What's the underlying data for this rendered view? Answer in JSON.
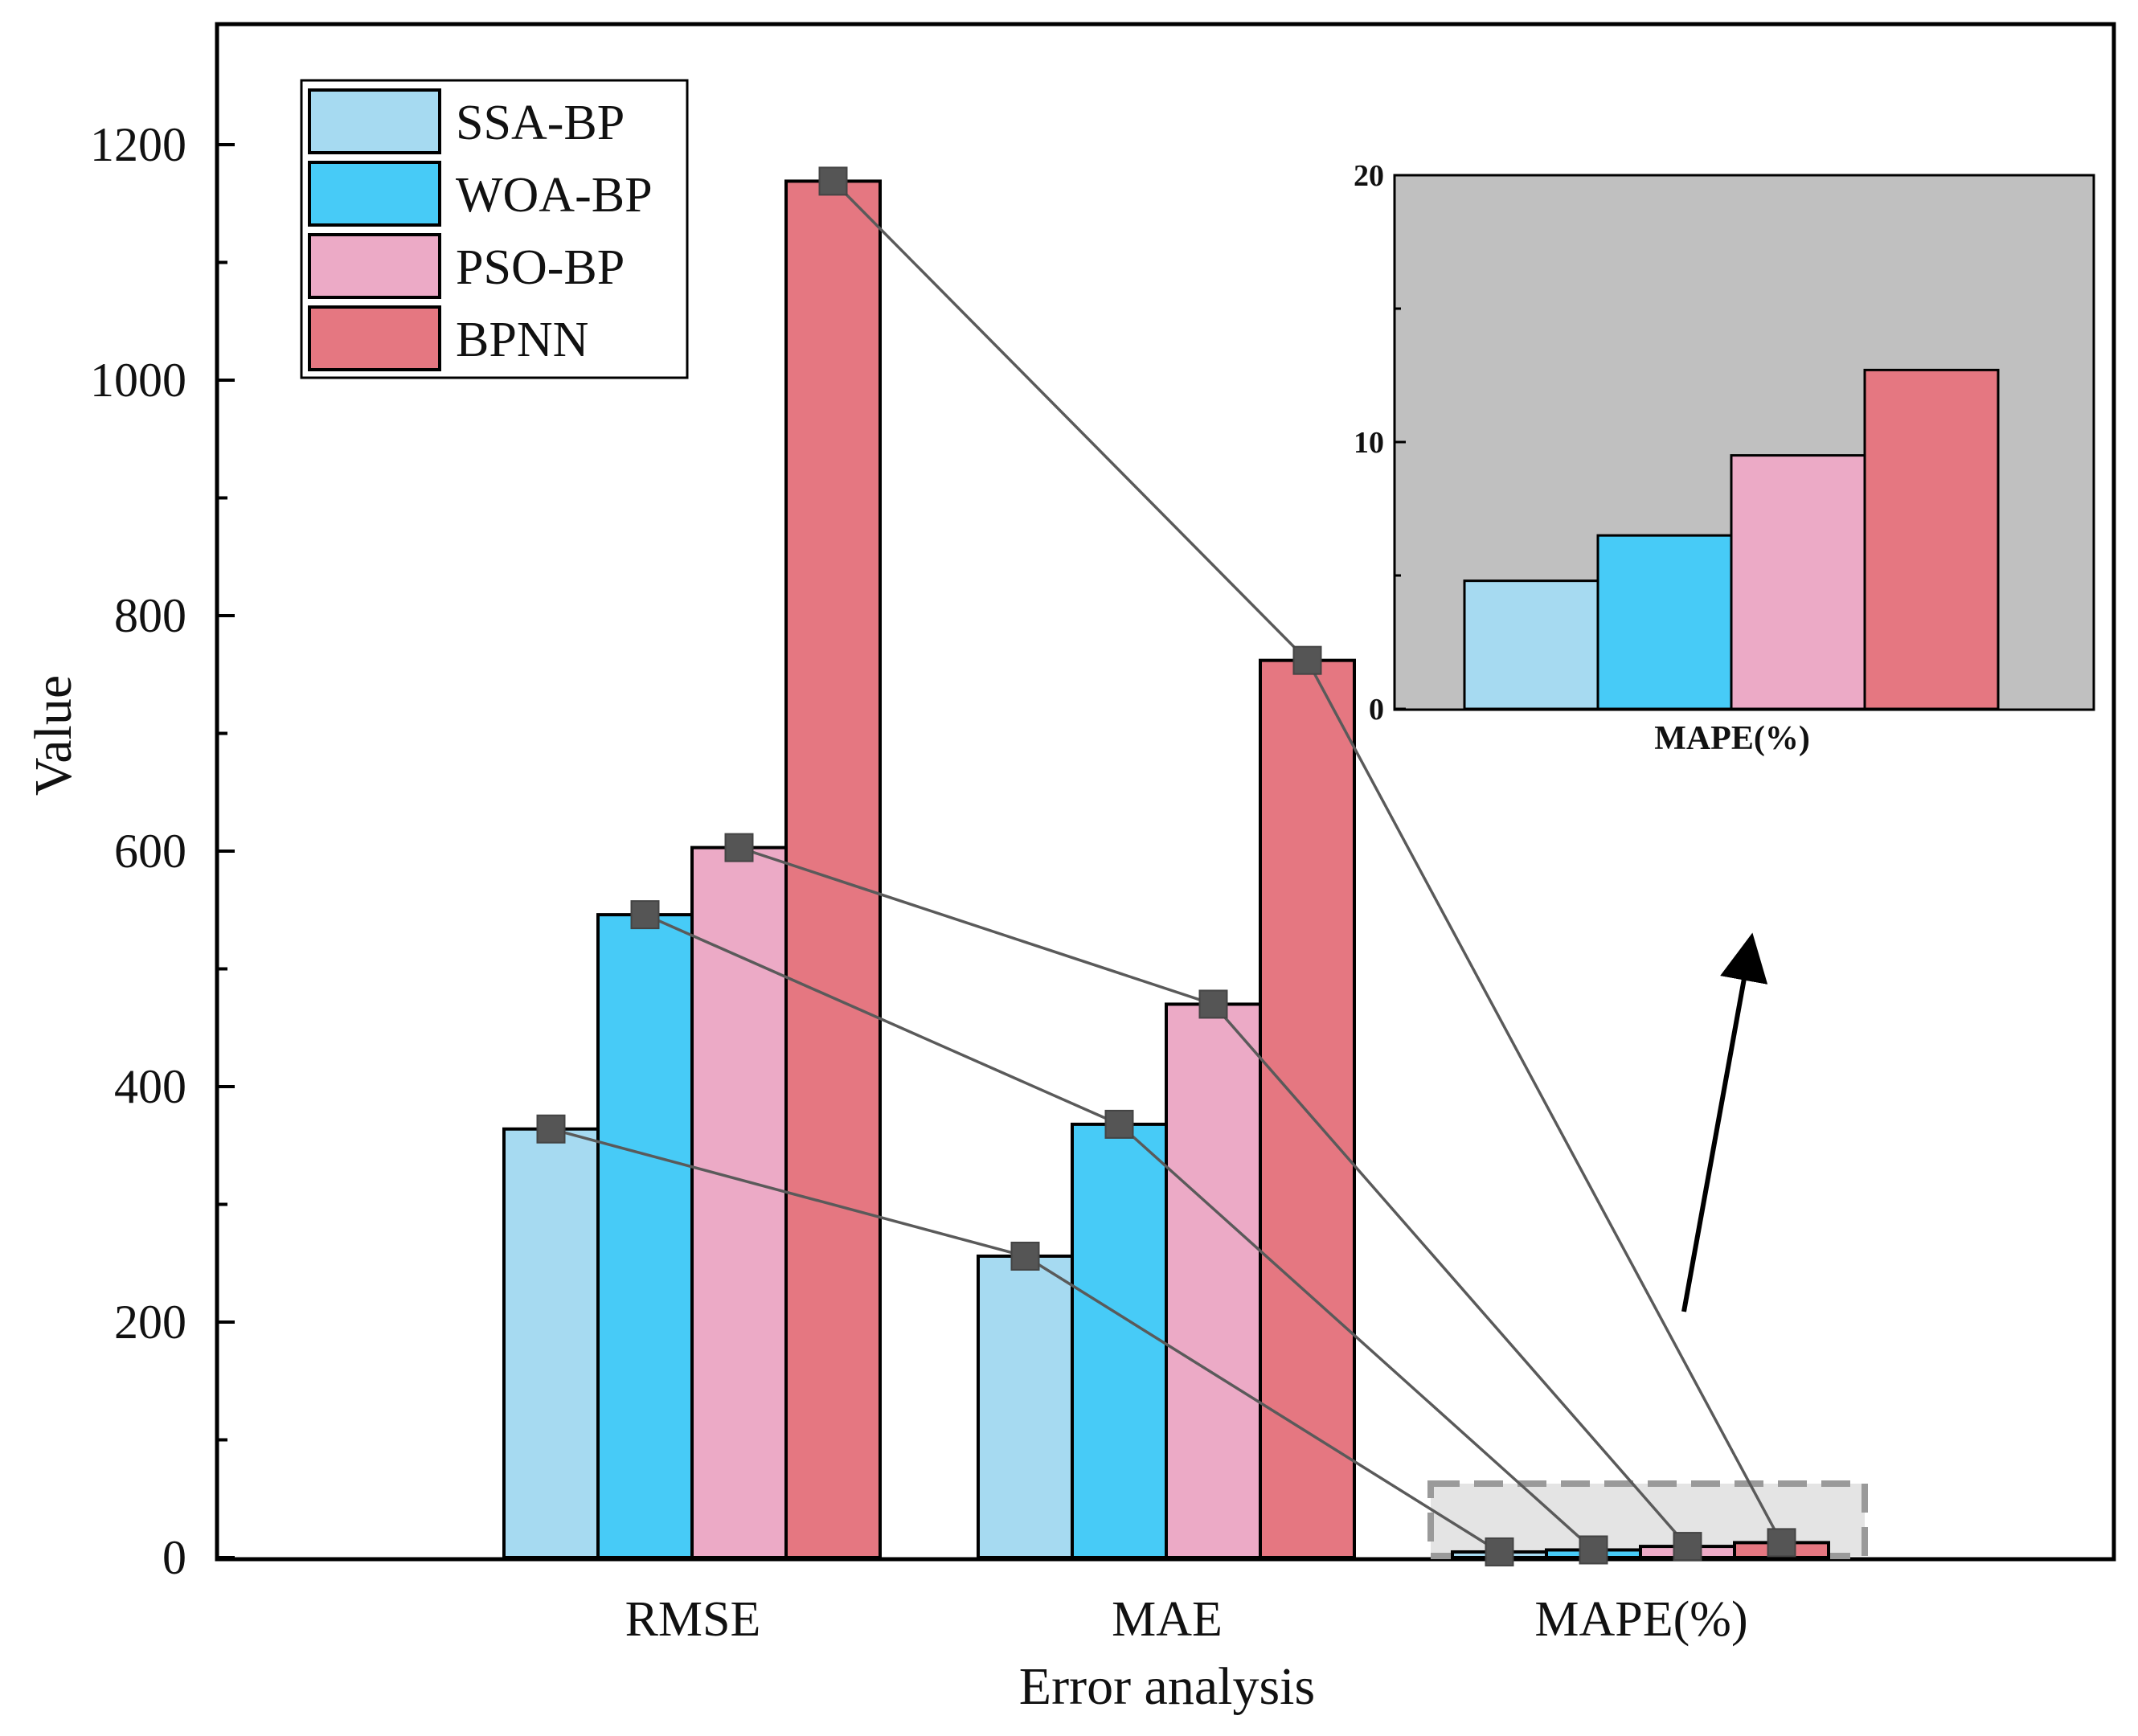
{
  "chart_data": {
    "type": "bar",
    "title": "",
    "xlabel": "Error analysis",
    "ylabel": "Value",
    "categories": [
      "RMSE",
      "MAE",
      "MAPE(%)"
    ],
    "ylim": [
      0,
      1300
    ],
    "yticks": [
      0,
      200,
      400,
      600,
      800,
      1000,
      1200
    ],
    "grid": false,
    "legend_position": "top-left",
    "series": [
      {
        "name": "SSA-BP",
        "color": "#a6daf1",
        "values": [
          364,
          256,
          4.8
        ]
      },
      {
        "name": "WOA-BP",
        "color": "#47cbf7",
        "values": [
          546,
          368,
          6.5
        ]
      },
      {
        "name": "PSO-BP",
        "color": "#ecaac6",
        "values": [
          603,
          470,
          9.5
        ]
      },
      {
        "name": "BPNN",
        "color": "#e57781",
        "values": [
          1169,
          762,
          12.7
        ]
      }
    ],
    "connector_lines": {
      "marker": "square",
      "color": "#555555",
      "description_series": "each model connected across RMSE, MAE, MAPE(%)"
    },
    "inset": {
      "category": "MAPE(%)",
      "ylim": [
        0,
        20
      ],
      "yticks": [
        0,
        10,
        20
      ],
      "xlabel": "MAPE(%)",
      "background": "#c0c0c0",
      "values": [
        4.8,
        6.5,
        9.5,
        12.7
      ]
    }
  }
}
